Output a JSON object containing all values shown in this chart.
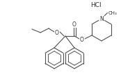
{
  "bg": "#ffffff",
  "lc": "#505050",
  "tc": "#303030",
  "figsize": [
    1.74,
    1.15
  ],
  "dpi": 100,
  "lw": 0.8,
  "hcl": "HCl",
  "N_label": "N",
  "O_label": "O",
  "methyl_label": "CH₃"
}
